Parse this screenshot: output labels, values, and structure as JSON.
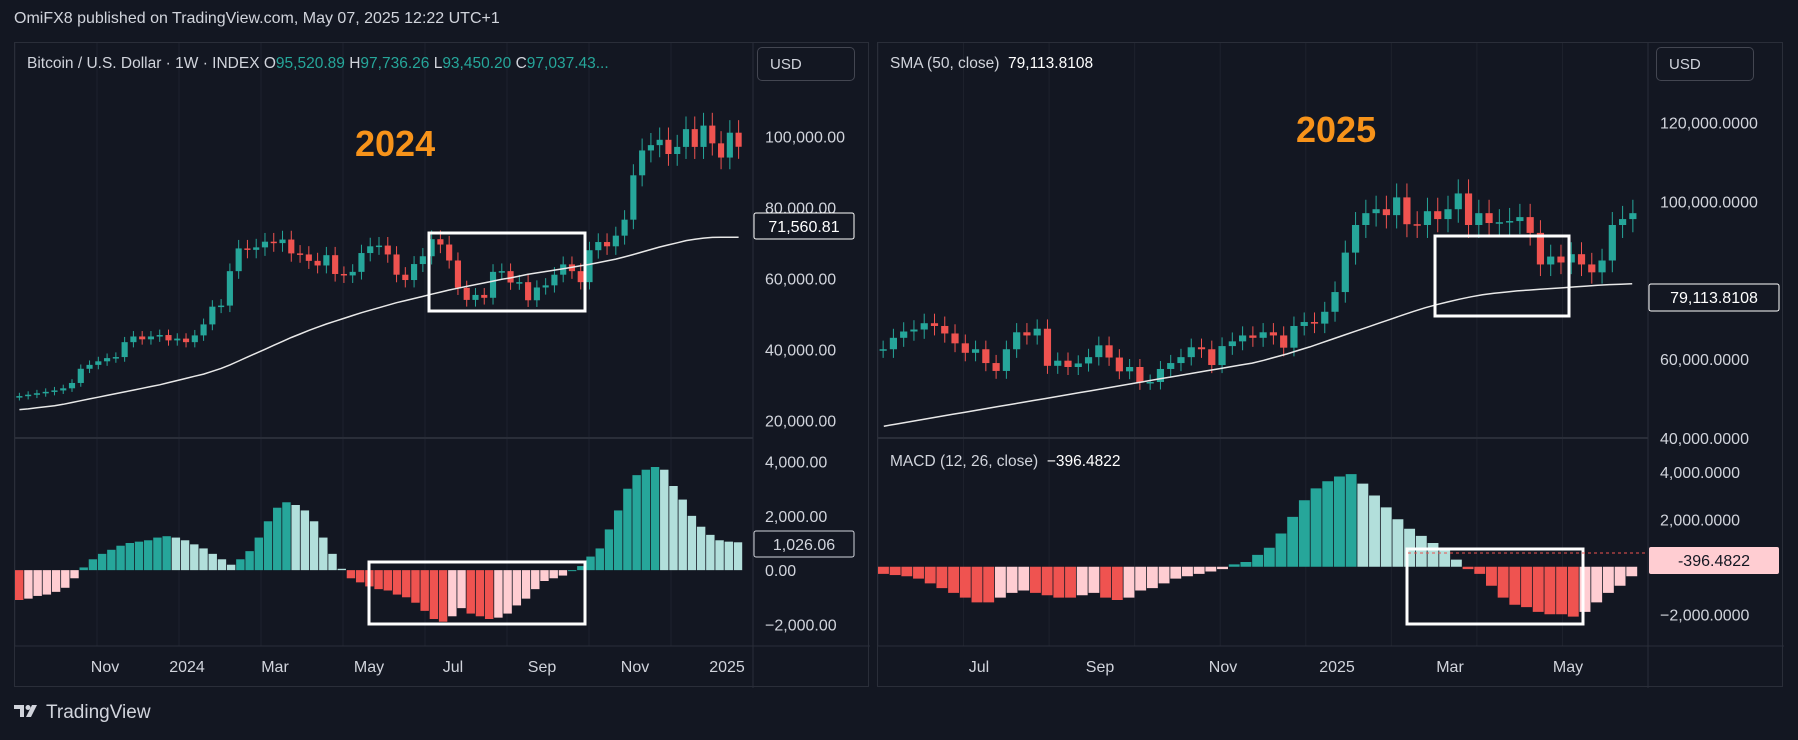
{
  "header": {
    "published": "OmiFX8 published on TradingView.com, May 07, 2025 12:22 UTC+1"
  },
  "footer": {
    "brand": "TradingView"
  },
  "colors": {
    "up": "#26a69a",
    "down": "#ef5350",
    "up_light": "#b2dfdb",
    "down_light": "#ffcdd2",
    "bg": "#131722",
    "grid": "#1e222d",
    "year_label": "#f7931a"
  },
  "left": {
    "legend": {
      "symbol": "Bitcoin / U.S. Dollar · 1W · INDEX",
      "o_label": "O",
      "o": "95,520.89",
      "h_label": "H",
      "h": "97,736.26",
      "l_label": "L",
      "l": "93,450.20",
      "c_label": "C",
      "c": "97,037.43..."
    },
    "currency": "USD",
    "year_label": "2024",
    "sma_badge": "71,560.81",
    "macd_badge": "1,026.06"
  },
  "right": {
    "legend": {
      "name": "SMA (50, close)",
      "value": "79,113.8108"
    },
    "macd_legend": {
      "name": "MACD (12, 26, close)",
      "value": "−396.4822"
    },
    "currency": "USD",
    "year_label": "2025",
    "sma_badge": "79,113.8108",
    "macd_badge": "-396.4822"
  },
  "chart_data": [
    {
      "type": "candlestick",
      "title": "Bitcoin / U.S. Dollar · 1W · INDEX",
      "annotation": "2024",
      "x_ticks": [
        "Nov",
        "2024",
        "Mar",
        "May",
        "Jul",
        "Sep",
        "Nov",
        "2025"
      ],
      "y_ticks": [
        "100,000.00",
        "80,000.00",
        "60,000.00",
        "40,000.00",
        "20,000.00"
      ],
      "ylim": [
        15000,
        115000
      ],
      "close": [
        26800,
        27200,
        27600,
        28000,
        28400,
        29000,
        30500,
        34500,
        35600,
        36600,
        37500,
        37800,
        42000,
        43600,
        42800,
        43600,
        44000,
        42500,
        43000,
        42000,
        43900,
        47000,
        52000,
        52300,
        62000,
        68400,
        68000,
        68700,
        70300,
        69900,
        70900,
        67000,
        66700,
        64900,
        63600,
        66500,
        61200,
        60800,
        61800,
        67100,
        69000,
        69200,
        66700,
        61000,
        59500,
        64000,
        66200,
        71000,
        69500,
        65000,
        57300,
        53900,
        55300,
        54500,
        61800,
        62000,
        58800,
        58900,
        53800,
        57400,
        58000,
        61000,
        63900,
        62000,
        58900,
        67900,
        70200,
        69000,
        72000,
        76500,
        89000,
        96000,
        97500,
        99000,
        95000,
        97000,
        102000,
        97000,
        103000,
        98000,
        94000,
        101000,
        97037
      ],
      "open_first": 26500,
      "sma50": [
        23000,
        23200,
        23500,
        23800,
        24100,
        24500,
        25000,
        25500,
        26000,
        26500,
        27000,
        27500,
        28000,
        28500,
        29000,
        29500,
        30000,
        30600,
        31200,
        31800,
        32400,
        33000,
        33800,
        34600,
        35600,
        36700,
        37800,
        38900,
        40000,
        41100,
        42200,
        43300,
        44300,
        45300,
        46200,
        47100,
        47900,
        48700,
        49500,
        50300,
        51000,
        51700,
        52400,
        53100,
        53700,
        54300,
        54900,
        55500,
        56100,
        56700,
        57200,
        57700,
        58200,
        58700,
        59200,
        59700,
        60100,
        60600,
        61100,
        61500,
        61900,
        62300,
        62700,
        63100,
        63500,
        63900,
        64400,
        64900,
        65400,
        66000,
        66700,
        67400,
        68100,
        68800,
        69400,
        70000,
        70600,
        71000,
        71300,
        71500,
        71560,
        71560,
        71560
      ],
      "macd_hist": [
        -1100,
        -1050,
        -950,
        -900,
        -800,
        -650,
        -300,
        100,
        400,
        600,
        750,
        900,
        1000,
        1050,
        1100,
        1200,
        1250,
        1200,
        1100,
        950,
        800,
        600,
        400,
        200,
        400,
        700,
        1200,
        1800,
        2300,
        2500,
        2400,
        2200,
        1800,
        1200,
        600,
        50,
        -300,
        -450,
        -600,
        -700,
        -750,
        -900,
        -1000,
        -1200,
        -1500,
        -1800,
        -1900,
        -1700,
        -1400,
        -1600,
        -1700,
        -1800,
        -1750,
        -1600,
        -1300,
        -1050,
        -700,
        -400,
        -300,
        -200,
        0,
        150,
        500,
        800,
        1500,
        2200,
        3000,
        3500,
        3700,
        3800,
        3700,
        3100,
        2600,
        2000,
        1600,
        1300,
        1100,
        1050,
        1026
      ],
      "highlight_box_weeks": [
        34,
        54
      ],
      "macd_ylim": [
        -2500,
        4500
      ],
      "macd_ticks": [
        "4,000.00",
        "2,000.00",
        "0.00",
        "−2,000.00"
      ]
    },
    {
      "type": "candlestick",
      "title": "SMA (50, close)",
      "annotation": "2025",
      "x_ticks": [
        "Jul",
        "Sep",
        "Nov",
        "2025",
        "Mar",
        "May"
      ],
      "y_ticks": [
        "120,000.0000",
        "100,000.0000",
        "60,000.0000",
        "40,000.0000"
      ],
      "ylim": [
        40000,
        130000
      ],
      "close": [
        62500,
        65400,
        67000,
        67500,
        69100,
        68400,
        66500,
        64000,
        61600,
        62500,
        59000,
        57000,
        62500,
        66800,
        66000,
        67700,
        58300,
        59600,
        58000,
        58900,
        60500,
        63500,
        60400,
        56900,
        58000,
        54100,
        54200,
        57500,
        59000,
        60500,
        63000,
        62500,
        58500,
        63300,
        64500,
        66000,
        65400,
        66800,
        66000,
        62900,
        68400,
        69400,
        69000,
        72000,
        77000,
        87000,
        94000,
        97000,
        98000,
        96500,
        101000,
        94200,
        94000,
        97500,
        95500,
        98000,
        102000,
        94000,
        97000,
        94500,
        94700,
        95000,
        96000,
        92000,
        84000,
        86000,
        84500,
        86600,
        84000,
        82000,
        85000,
        94000,
        95500,
        97000
      ],
      "sma50": [
        43000,
        43500,
        44000,
        44500,
        45000,
        45500,
        46000,
        46500,
        47000,
        47500,
        48000,
        48500,
        49000,
        49500,
        50000,
        50500,
        51000,
        51500,
        52000,
        52500,
        53000,
        53500,
        54000,
        54500,
        55000,
        55500,
        56000,
        56500,
        57000,
        57500,
        58000,
        58500,
        59000,
        59700,
        60500,
        61300,
        62200,
        63100,
        64100,
        65100,
        66100,
        67100,
        68100,
        69100,
        70100,
        71100,
        72100,
        73000,
        73800,
        74500,
        75200,
        75800,
        76300,
        76700,
        77000,
        77300,
        77500,
        77700,
        77900,
        78100,
        78300,
        78500,
        78700,
        78900,
        79000,
        79113
      ],
      "macd_hist": [
        -300,
        -350,
        -400,
        -500,
        -700,
        -900,
        -1100,
        -1300,
        -1500,
        -1500,
        -1300,
        -1100,
        -1000,
        -1100,
        -1200,
        -1300,
        -1300,
        -1200,
        -1100,
        -1300,
        -1400,
        -1300,
        -1000,
        -900,
        -700,
        -500,
        -400,
        -300,
        -200,
        -100,
        100,
        200,
        500,
        800,
        1400,
        2100,
        2800,
        3300,
        3600,
        3800,
        3900,
        3500,
        3000,
        2500,
        2000,
        1600,
        1300,
        1000,
        700,
        300,
        -100,
        -300,
        -800,
        -1300,
        -1600,
        -1700,
        -1900,
        -2000,
        -2000,
        -2100,
        -1900,
        -1500,
        -1100,
        -800,
        -400
      ],
      "highlight_box": "Mar–May",
      "macd_ylim": [
        -3000,
        5000
      ],
      "macd_ticks": [
        "4,000.0000",
        "2,000.0000",
        "−2,000.0000"
      ]
    }
  ]
}
